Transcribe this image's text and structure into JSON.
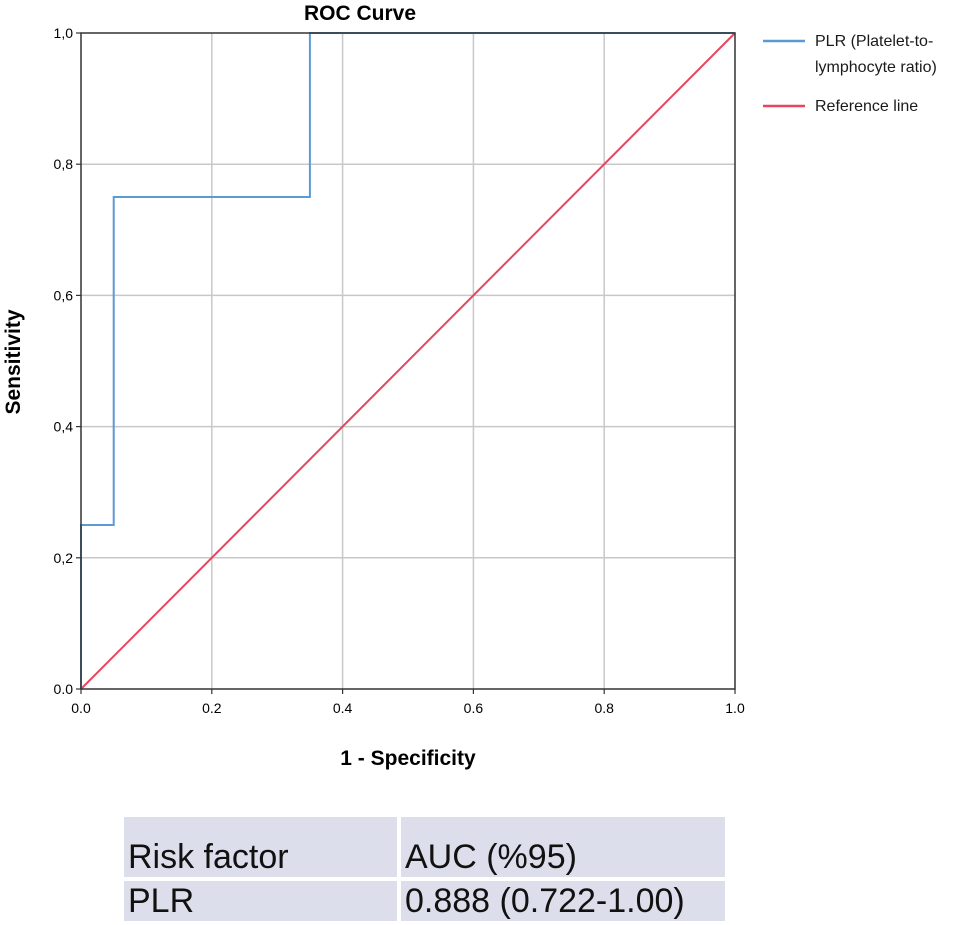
{
  "chart_data": {
    "type": "line",
    "title": "ROC Curve",
    "xlabel": "1 - Specificity",
    "ylabel": "Sensitivity",
    "xlim": [
      0,
      1
    ],
    "ylim": [
      0,
      1
    ],
    "x_ticks": [
      "0.0",
      "0.2",
      "0.4",
      "0.6",
      "0.8",
      "1.0"
    ],
    "y_ticks": [
      "0.0",
      "0,2",
      "0,4",
      "0,6",
      "0,8",
      "1,0"
    ],
    "grid": true,
    "legend_position": "right",
    "series": [
      {
        "name": "PLR (Platelet-to-lymphocyte ratio)",
        "legend_lines": [
          "PLR (Platelet-to-",
          "lymphocyte ratio)"
        ],
        "color": "#5b9bd5",
        "step": true,
        "points": [
          {
            "x": 0,
            "y": 0
          },
          {
            "x": 0,
            "y": 0.25
          },
          {
            "x": 0.05,
            "y": 0.25
          },
          {
            "x": 0.05,
            "y": 0.75
          },
          {
            "x": 0.35,
            "y": 0.75
          },
          {
            "x": 0.35,
            "y": 1.0
          },
          {
            "x": 1.0,
            "y": 1.0
          }
        ]
      },
      {
        "name": "Reference line",
        "legend_lines": [
          "Reference line"
        ],
        "color": "#e8465f",
        "step": false,
        "points": [
          {
            "x": 0,
            "y": 0
          },
          {
            "x": 1,
            "y": 1
          }
        ]
      }
    ]
  },
  "table": {
    "header": [
      "Risk factor",
      "AUC (%95)"
    ],
    "rows": [
      [
        "PLR",
        "0.888 (0.722-1.00)"
      ]
    ]
  }
}
